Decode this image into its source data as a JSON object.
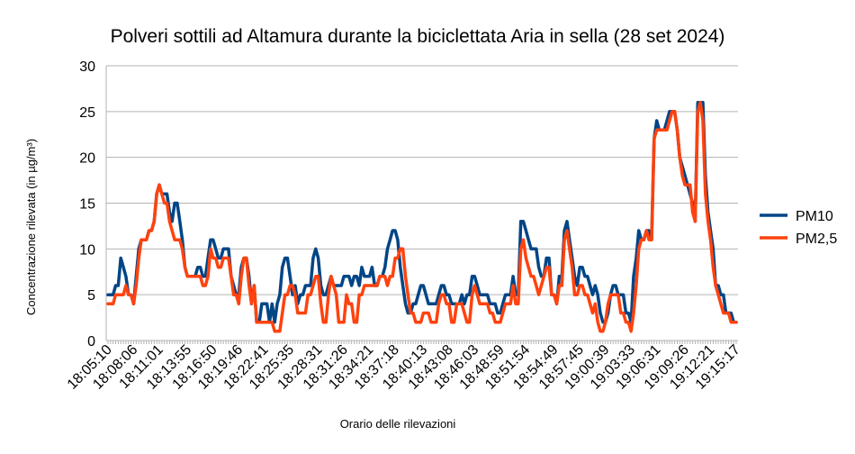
{
  "chart_data": {
    "type": "line",
    "title": "Polveri sottili ad Altamura durante la biciclettata Aria in sella (28 set 2024)",
    "xlabel": "Orario delle rilevazioni",
    "ylabel": "Concentrazione rilevata (in µg/m³)",
    "ylim": [
      0,
      30
    ],
    "y_ticks": [
      0,
      5,
      10,
      15,
      20,
      25,
      30
    ],
    "grid": true,
    "legend_position": "right",
    "x_tick_labels": [
      "18:05:10",
      "18:08:06",
      "18:11:01",
      "18:13:55",
      "18:16:50",
      "18:19:46",
      "18:22:41",
      "18:25:35",
      "18:28:31",
      "18:31:26",
      "18:34:21",
      "18:37:18",
      "18:40:13",
      "18:43:08",
      "18:46:03",
      "18:48:59",
      "18:51:54",
      "18:54:49",
      "18:57:45",
      "19:00:39",
      "19:03:33",
      "19:06:31",
      "19:09:26",
      "19:12:21",
      "19:15:17"
    ],
    "series": [
      {
        "name": "PM10",
        "color": "#004586",
        "values": [
          5,
          5,
          5,
          6,
          6,
          9,
          8,
          7,
          5,
          5,
          4,
          7,
          10,
          11,
          11,
          11,
          12,
          12,
          13,
          16,
          17,
          16,
          16,
          16,
          14,
          13,
          15,
          15,
          13,
          11,
          8,
          7,
          7,
          7,
          7,
          8,
          8,
          7,
          7,
          9,
          11,
          11,
          10,
          9,
          9,
          10,
          10,
          10,
          7,
          6,
          5,
          5,
          8,
          9,
          9,
          7,
          4,
          6,
          2,
          2,
          4,
          4,
          4,
          2,
          4,
          2,
          4,
          5,
          8,
          9,
          9,
          7,
          5,
          6,
          4,
          5,
          5,
          6,
          6,
          6,
          9,
          10,
          9,
          6,
          5,
          5,
          6,
          7,
          6,
          6,
          6,
          6,
          7,
          7,
          7,
          6,
          7,
          7,
          6,
          8,
          7,
          7,
          7,
          8,
          6,
          6,
          7,
          7,
          8,
          10,
          11,
          12,
          12,
          11,
          8,
          6,
          4,
          3,
          3,
          4,
          4,
          5,
          6,
          6,
          5,
          4,
          4,
          4,
          4,
          5,
          6,
          6,
          5,
          5,
          4,
          4,
          4,
          4,
          5,
          4,
          5,
          5,
          7,
          7,
          6,
          5,
          5,
          5,
          5,
          4,
          4,
          4,
          3,
          3,
          4,
          5,
          5,
          5,
          7,
          5,
          5,
          13,
          13,
          12,
          11,
          10,
          10,
          10,
          8,
          7,
          7,
          9,
          9,
          5,
          5,
          4,
          7,
          7,
          12,
          13,
          11,
          9,
          7,
          6,
          8,
          8,
          7,
          7,
          6,
          5,
          6,
          5,
          3,
          2,
          2,
          3,
          5,
          6,
          6,
          5,
          5,
          5,
          3,
          3,
          2,
          7,
          9,
          12,
          11,
          11,
          12,
          12,
          11,
          22,
          24,
          23,
          23,
          23,
          24,
          25,
          25,
          25,
          23,
          20,
          19,
          18,
          17,
          16,
          15,
          13,
          26,
          26,
          26,
          18,
          14,
          12,
          10,
          6,
          6,
          5,
          5,
          3,
          3,
          3,
          2,
          2
        ]
      },
      {
        "name": "PM2,5",
        "color": "#ff420e",
        "values": [
          4,
          4,
          4,
          5,
          5,
          5,
          5,
          6,
          5,
          5,
          4,
          6,
          9,
          11,
          11,
          11,
          12,
          12,
          13,
          16,
          17,
          16,
          15,
          15,
          13,
          12,
          11,
          11,
          11,
          10,
          8,
          7,
          7,
          7,
          7,
          7,
          7,
          6,
          6,
          7,
          10,
          9,
          9,
          8,
          8,
          9,
          9,
          9,
          7,
          5,
          5,
          4,
          7,
          9,
          9,
          6,
          4,
          6,
          2,
          2,
          2,
          2,
          2,
          2,
          2,
          1,
          1,
          1,
          3,
          5,
          5,
          6,
          6,
          5,
          3,
          3,
          3,
          3,
          5,
          5,
          6,
          7,
          7,
          4,
          2,
          2,
          5,
          7,
          6,
          5,
          2,
          2,
          2,
          5,
          4,
          4,
          2,
          2,
          5,
          5,
          6,
          6,
          6,
          6,
          6,
          6,
          7,
          7,
          7,
          6,
          7,
          7,
          9,
          9,
          10,
          10,
          7,
          5,
          3,
          3,
          2,
          2,
          2,
          3,
          3,
          3,
          2,
          2,
          2,
          4,
          5,
          5,
          4,
          4,
          2,
          2,
          4,
          4,
          4,
          3,
          2,
          2,
          5,
          6,
          5,
          4,
          4,
          4,
          4,
          3,
          3,
          2,
          2,
          2,
          3,
          4,
          4,
          4,
          6,
          4,
          4,
          10,
          11,
          9,
          8,
          7,
          7,
          6,
          5,
          6,
          7,
          8,
          8,
          5,
          5,
          4,
          6,
          6,
          11,
          12,
          10,
          8,
          5,
          5,
          6,
          6,
          5,
          5,
          4,
          3,
          4,
          2,
          1,
          1,
          2,
          4,
          5,
          5,
          5,
          5,
          3,
          3,
          2,
          2,
          1,
          3,
          6,
          10,
          11,
          11,
          12,
          11,
          11,
          22,
          23,
          23,
          23,
          23,
          23,
          24,
          25,
          25,
          23,
          20,
          18,
          17,
          17,
          17,
          14,
          13,
          25,
          26,
          24,
          16,
          13,
          11,
          8,
          6,
          5,
          4,
          3,
          3,
          3,
          2,
          2,
          2
        ]
      }
    ]
  }
}
